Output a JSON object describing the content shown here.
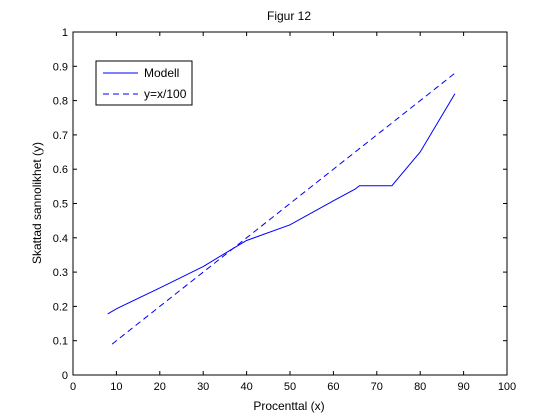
{
  "chart_data": {
    "type": "line",
    "title": "Figur 12",
    "xlabel": "Procenttal (x)",
    "ylabel": "Skattad sannolikhet (y)",
    "xlim": [
      0,
      100
    ],
    "ylim": [
      0,
      1
    ],
    "xticks": [
      0,
      10,
      20,
      30,
      40,
      50,
      60,
      70,
      80,
      90,
      100
    ],
    "yticks": [
      0,
      0.1,
      0.2,
      0.3,
      0.4,
      0.5,
      0.6,
      0.7,
      0.8,
      0.9,
      1
    ],
    "xtick_labels": [
      "0",
      "10",
      "20",
      "30",
      "40",
      "50",
      "60",
      "70",
      "80",
      "90",
      "100"
    ],
    "ytick_labels": [
      "0",
      "0.1",
      "0.2",
      "0.3",
      "0.4",
      "0.5",
      "0.6",
      "0.7",
      "0.8",
      "0.9",
      "1"
    ],
    "grid": false,
    "legend_position": "top-left",
    "series": [
      {
        "name": "Modell",
        "color": "#0000ff",
        "dash": "solid",
        "x": [
          8,
          10,
          20,
          30,
          36,
          40,
          50,
          60,
          65,
          66,
          73.5,
          74,
          80,
          88
        ],
        "y": [
          0.178,
          0.193,
          0.254,
          0.316,
          0.362,
          0.392,
          0.438,
          0.508,
          0.542,
          0.552,
          0.552,
          0.56,
          0.65,
          0.82
        ]
      },
      {
        "name": "y=x/100",
        "color": "#0000ff",
        "dash": "dashed",
        "x": [
          9,
          88
        ],
        "y": [
          0.09,
          0.88
        ]
      }
    ]
  }
}
